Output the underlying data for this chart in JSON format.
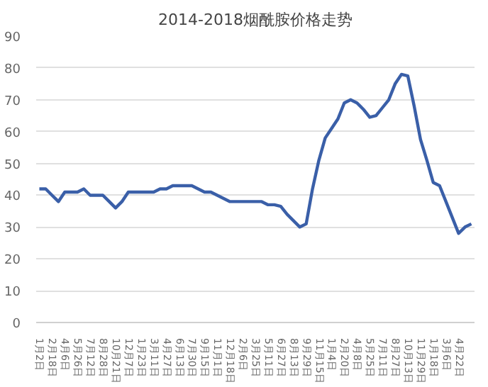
{
  "chart_data": {
    "type": "line",
    "title": "2014-2018烟酰胺价格走势",
    "categories": [
      "1月2日",
      null,
      "2月18日",
      null,
      "4月6日",
      null,
      "5月26日",
      null,
      "7月12日",
      null,
      "8月28日",
      null,
      "10月21日",
      null,
      "12月7日",
      null,
      "1月23日",
      null,
      "3月11日",
      null,
      "4月27日",
      null,
      "6月13日",
      null,
      "7月30日",
      null,
      "9月15日",
      null,
      "11月1日",
      null,
      "12月18日",
      null,
      "2月6日",
      null,
      "3月25日",
      null,
      "5月11日",
      null,
      "6月27日",
      null,
      "8月13日",
      null,
      "9月29日",
      null,
      "11月15日",
      null,
      "1月4日",
      null,
      "2月20日",
      null,
      "4月8日",
      null,
      "5月25日",
      null,
      "7月11日",
      null,
      "8月27日",
      null,
      "10月13日",
      null,
      "11月29日",
      null,
      "1月18日",
      null,
      "3月6日",
      null,
      "4月22日",
      null,
      null
    ],
    "series": [
      {
        "color": "#3a5fa8",
        "values": [
          42,
          42,
          40,
          38,
          41,
          41,
          41,
          42,
          40,
          40,
          40,
          38,
          36,
          38,
          41,
          41,
          41,
          41,
          41,
          42,
          42,
          43,
          43,
          43,
          43,
          42,
          41,
          41,
          40,
          39,
          38,
          38,
          38,
          38,
          38,
          38,
          37,
          37,
          36.5,
          34,
          32,
          30,
          31,
          42,
          51,
          58,
          61,
          64,
          69,
          70,
          69,
          67,
          64.5,
          65,
          67.5,
          70,
          75,
          78,
          77.5,
          68,
          57.5,
          51,
          44,
          43,
          38,
          33,
          28,
          30,
          31
        ]
      }
    ],
    "ylim": [
      0,
      90
    ],
    "yticks": [
      0,
      10,
      20,
      30,
      40,
      50,
      60,
      70,
      80,
      90
    ],
    "grid": "y",
    "marker": "none",
    "line_style": "solid"
  }
}
